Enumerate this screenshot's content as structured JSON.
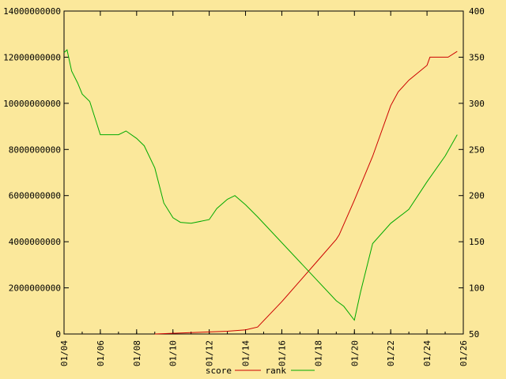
{
  "chart_data": {
    "type": "line",
    "background": "#fbe89b",
    "grid": false,
    "legend_position": "bottom-center",
    "x_ticks": [
      "01/04",
      "01/06",
      "01/08",
      "01/10",
      "01/12",
      "01/14",
      "01/16",
      "01/18",
      "01/20",
      "01/22",
      "01/24",
      "01/26"
    ],
    "xlim": [
      "2004-01-01",
      "2026-01-01"
    ],
    "y_left": {
      "ticks": [
        "0",
        "2000000000",
        "4000000000",
        "6000000000",
        "8000000000",
        "10000000000",
        "12000000000",
        "14000000000"
      ],
      "ylim": [
        0,
        14000000000
      ]
    },
    "y_right": {
      "ticks": [
        "50",
        "100",
        "150",
        "200",
        "250",
        "300",
        "350",
        "400"
      ],
      "ylim": [
        50,
        400
      ]
    },
    "series": [
      {
        "name": "score",
        "axis": "left",
        "color": "#cc0000",
        "points": [
          [
            "2009-01-01",
            0
          ],
          [
            "2010-01-01",
            30000000
          ],
          [
            "2011-01-01",
            60000000
          ],
          [
            "2012-01-01",
            90000000
          ],
          [
            "2013-01-01",
            120000000
          ],
          [
            "2014-01-01",
            180000000
          ],
          [
            "2014-09-01",
            300000000
          ],
          [
            "2016-01-01",
            1400000000
          ],
          [
            "2017-01-01",
            2300000000
          ],
          [
            "2018-01-01",
            3200000000
          ],
          [
            "2019-01-01",
            4100000000
          ],
          [
            "2019-03-01",
            4300000000
          ],
          [
            "2020-01-01",
            5800000000
          ],
          [
            "2021-01-01",
            7700000000
          ],
          [
            "2022-01-01",
            9900000000
          ],
          [
            "2022-06-01",
            10500000000
          ],
          [
            "2023-01-01",
            11000000000
          ],
          [
            "2024-01-01",
            11650000000
          ],
          [
            "2024-03-01",
            12000000000
          ],
          [
            "2025-03-01",
            12000000000
          ],
          [
            "2025-09-01",
            12250000000
          ]
        ]
      },
      {
        "name": "rank",
        "axis": "right",
        "color": "#00aa00",
        "points": [
          [
            "2004-01-01",
            355
          ],
          [
            "2004-03-01",
            358
          ],
          [
            "2004-06-01",
            335
          ],
          [
            "2004-10-01",
            322
          ],
          [
            "2005-01-01",
            310
          ],
          [
            "2005-06-01",
            302
          ],
          [
            "2006-01-01",
            266
          ],
          [
            "2007-01-01",
            266
          ],
          [
            "2007-06-01",
            270
          ],
          [
            "2008-01-01",
            262
          ],
          [
            "2008-06-01",
            254
          ],
          [
            "2009-01-01",
            230
          ],
          [
            "2009-07-01",
            192
          ],
          [
            "2010-01-01",
            176
          ],
          [
            "2010-06-01",
            171
          ],
          [
            "2011-01-01",
            170
          ],
          [
            "2012-01-01",
            174
          ],
          [
            "2012-06-01",
            186
          ],
          [
            "2013-01-01",
            196
          ],
          [
            "2013-06-01",
            200
          ],
          [
            "2014-01-01",
            190
          ],
          [
            "2014-09-01",
            177
          ],
          [
            "2019-01-01",
            86
          ],
          [
            "2019-06-01",
            80
          ],
          [
            "2020-01-01",
            65
          ],
          [
            "2020-05-01",
            95
          ],
          [
            "2021-01-01",
            148
          ],
          [
            "2022-01-01",
            170
          ],
          [
            "2023-01-01",
            185
          ],
          [
            "2024-01-01",
            215
          ],
          [
            "2025-01-01",
            243
          ],
          [
            "2025-09-01",
            266
          ]
        ]
      }
    ]
  }
}
